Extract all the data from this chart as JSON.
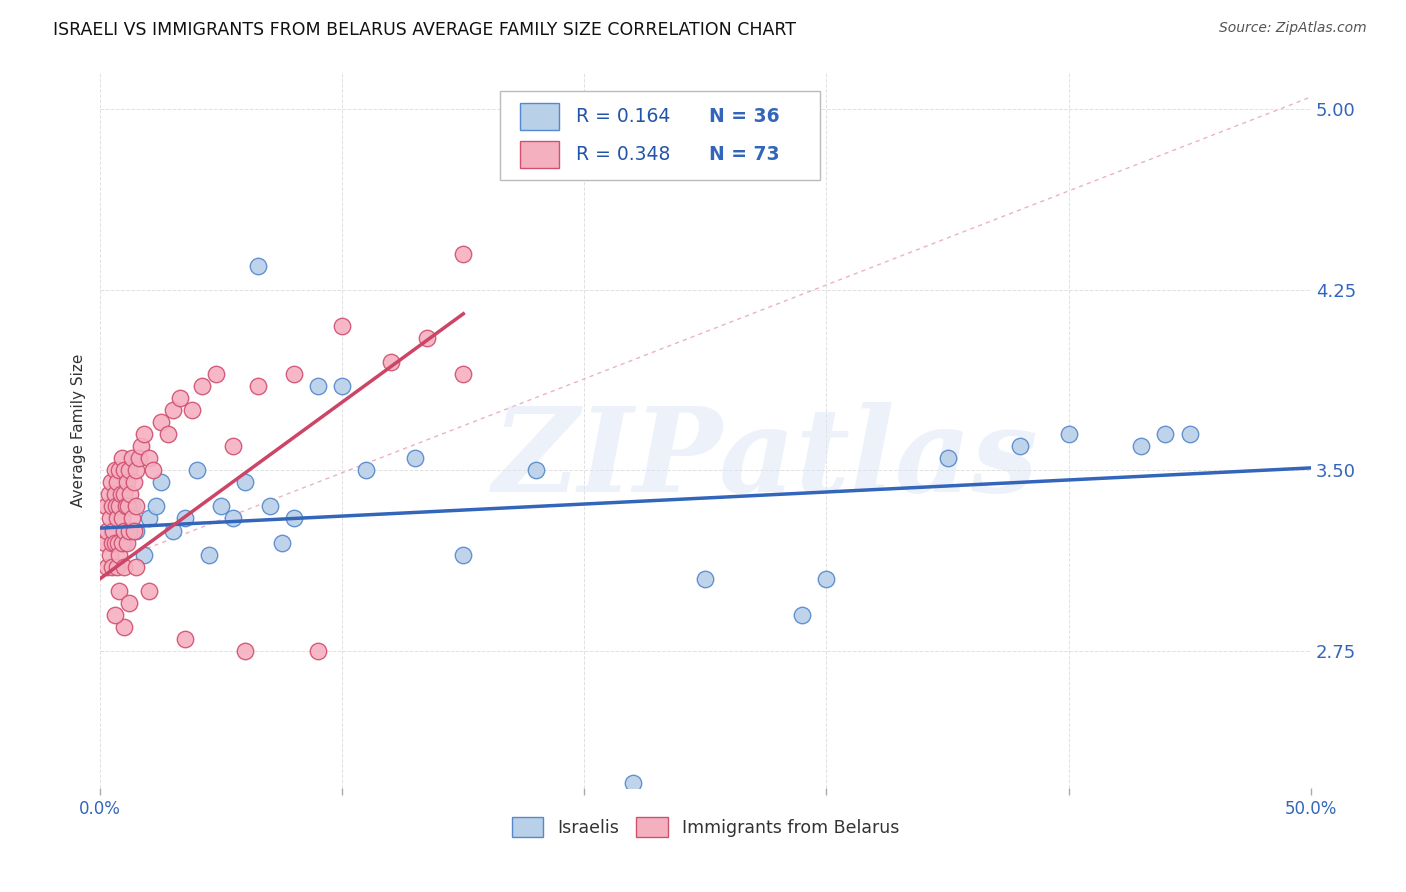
{
  "title": "ISRAELI VS IMMIGRANTS FROM BELARUS AVERAGE FAMILY SIZE CORRELATION CHART",
  "source": "Source: ZipAtlas.com",
  "ylabel": "Average Family Size",
  "yticks": [
    2.75,
    3.5,
    4.25,
    5.0
  ],
  "xlim": [
    0.0,
    50.0
  ],
  "ylim": [
    2.18,
    5.15
  ],
  "legend_r1": "R = 0.164",
  "legend_n1": "N = 36",
  "legend_r2": "R = 0.348",
  "legend_n2": "N = 73",
  "watermark_text": "ZIPatlas",
  "color_israeli": "#b8d0e8",
  "color_israeli_edge": "#5588cc",
  "color_belarus": "#f5b0c0",
  "color_belarus_edge": "#d05070",
  "color_israeli_line": "#3366bb",
  "color_belarus_line": "#cc4466",
  "color_dashed": "#e8a0b0",
  "israelis_x": [
    0.5,
    0.7,
    1.0,
    1.3,
    1.5,
    1.8,
    2.0,
    2.3,
    2.5,
    3.0,
    3.5,
    4.0,
    4.5,
    5.0,
    5.5,
    6.0,
    6.5,
    7.0,
    7.5,
    8.0,
    9.0,
    10.0,
    11.0,
    13.0,
    15.0,
    18.0,
    25.0,
    29.0,
    30.0,
    35.0,
    38.0,
    40.0,
    43.0,
    44.0,
    45.0,
    22.0
  ],
  "israelis_y": [
    3.25,
    3.3,
    3.2,
    3.35,
    3.25,
    3.15,
    3.3,
    3.35,
    3.45,
    3.25,
    3.3,
    3.5,
    3.15,
    3.35,
    3.3,
    3.45,
    4.35,
    3.35,
    3.2,
    3.3,
    3.85,
    3.85,
    3.5,
    3.55,
    3.15,
    3.5,
    3.05,
    2.9,
    3.05,
    3.55,
    3.6,
    3.65,
    3.6,
    3.65,
    3.65,
    2.2
  ],
  "belarus_x": [
    0.2,
    0.25,
    0.3,
    0.3,
    0.35,
    0.4,
    0.4,
    0.45,
    0.5,
    0.5,
    0.5,
    0.55,
    0.6,
    0.6,
    0.6,
    0.65,
    0.7,
    0.7,
    0.7,
    0.75,
    0.8,
    0.8,
    0.8,
    0.85,
    0.9,
    0.9,
    0.9,
    1.0,
    1.0,
    1.0,
    1.0,
    1.05,
    1.1,
    1.1,
    1.15,
    1.2,
    1.2,
    1.25,
    1.3,
    1.3,
    1.4,
    1.4,
    1.5,
    1.5,
    1.6,
    1.7,
    1.8,
    2.0,
    2.2,
    2.5,
    2.8,
    3.0,
    3.3,
    3.8,
    4.2,
    4.8,
    5.5,
    6.5,
    8.0,
    10.0,
    12.0,
    13.5,
    15.0,
    1.0,
    0.6,
    0.8,
    1.2,
    1.5,
    2.0,
    3.5,
    6.0,
    9.0,
    15.0
  ],
  "belarus_y": [
    3.2,
    3.35,
    3.25,
    3.1,
    3.4,
    3.3,
    3.15,
    3.45,
    3.2,
    3.35,
    3.1,
    3.25,
    3.4,
    3.2,
    3.5,
    3.35,
    3.45,
    3.3,
    3.1,
    3.2,
    3.35,
    3.15,
    3.5,
    3.4,
    3.2,
    3.55,
    3.3,
    3.25,
    3.4,
    3.1,
    3.5,
    3.35,
    3.45,
    3.2,
    3.35,
    3.5,
    3.25,
    3.4,
    3.55,
    3.3,
    3.45,
    3.25,
    3.5,
    3.35,
    3.55,
    3.6,
    3.65,
    3.55,
    3.5,
    3.7,
    3.65,
    3.75,
    3.8,
    3.75,
    3.85,
    3.9,
    3.6,
    3.85,
    3.9,
    4.1,
    3.95,
    4.05,
    4.4,
    2.85,
    2.9,
    3.0,
    2.95,
    3.1,
    3.0,
    2.8,
    2.75,
    2.75,
    3.9
  ],
  "trendline_blue_x0": 0.0,
  "trendline_blue_y0": 3.26,
  "trendline_blue_x1": 50.0,
  "trendline_blue_y1": 3.51,
  "trendline_pink_x0": 0.0,
  "trendline_pink_y0": 3.05,
  "trendline_pink_x1": 15.0,
  "trendline_pink_y1": 4.15,
  "dashed_x0": 0.0,
  "dashed_y0": 3.1,
  "dashed_x1": 50.0,
  "dashed_y1": 5.05,
  "title_fontsize": 12.5,
  "axis_label_fontsize": 11,
  "tick_fontsize": 12,
  "legend_fontsize": 13.5
}
